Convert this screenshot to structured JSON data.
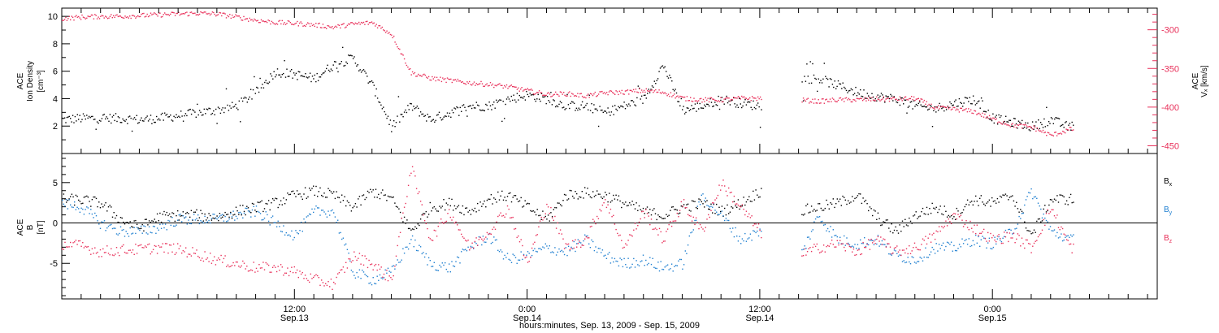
{
  "chart_data": [
    {
      "type": "scatter",
      "panel": "top",
      "ylabel_left": [
        "ACE",
        "Ion Density",
        "[cm⁻³]"
      ],
      "ylabel_right": [
        "ACE",
        "Vₓ [km/s]"
      ],
      "left_axis": {
        "ticks": [
          2,
          4,
          6,
          8,
          10
        ],
        "ylim": [
          0,
          10.6
        ]
      },
      "right_axis": {
        "ticks": [
          -450,
          -400,
          -350,
          -300
        ],
        "ylim": [
          -460,
          -272
        ],
        "color": "#e8305a"
      },
      "x_hours": [
        0,
        56.5
      ],
      "series": [
        {
          "name": "Ion Density",
          "axis": "left",
          "color": "#000000",
          "x": [
            0,
            1,
            2,
            3,
            4,
            5,
            6,
            7,
            8,
            9,
            10,
            11,
            12,
            13,
            14,
            15,
            16,
            17,
            18,
            19,
            20,
            21,
            22,
            23,
            24,
            25,
            26,
            27,
            28,
            29,
            30,
            31,
            32,
            33,
            34,
            35,
            36,
            37,
            38,
            39,
            40,
            41,
            42,
            43,
            44,
            45,
            46,
            47,
            48,
            49,
            50,
            51,
            52
          ],
          "y": [
            2.5,
            2.6,
            2.6,
            2.6,
            2.5,
            2.6,
            2.8,
            3.0,
            3.2,
            3.5,
            4.5,
            6.0,
            5.8,
            5.5,
            6.5,
            7.0,
            5.0,
            2.0,
            3.5,
            2.5,
            3.0,
            3.5,
            3.5,
            4.0,
            4.3,
            4.0,
            3.5,
            3.5,
            3.0,
            3.5,
            4.0,
            6.5,
            3.2,
            3.5,
            4.0,
            3.7,
            3.5,
            4.5,
            5.5,
            5.5,
            5.0,
            4.5,
            4.2,
            4.0,
            3.5,
            3.3,
            3.7,
            4.0,
            2.6,
            2.3,
            2.0,
            2.5,
            1.9
          ]
        },
        {
          "name": "Vx",
          "axis": "right",
          "color": "#e8305a",
          "x": [
            0,
            1,
            2,
            3,
            4,
            5,
            6,
            7,
            8,
            9,
            10,
            11,
            12,
            13,
            14,
            15,
            16,
            17,
            18,
            19,
            20,
            21,
            22,
            23,
            24,
            25,
            26,
            27,
            28,
            29,
            30,
            31,
            32,
            33,
            34,
            35,
            36,
            37,
            38,
            39,
            40,
            41,
            42,
            43,
            44,
            45,
            46,
            47,
            48,
            49,
            50,
            51,
            52
          ],
          "y": [
            -285,
            -283,
            -282,
            -282,
            -281,
            -280,
            -279,
            -278,
            -279,
            -283,
            -287,
            -290,
            -291,
            -293,
            -296,
            -292,
            -290,
            -305,
            -355,
            -362,
            -365,
            -368,
            -370,
            -373,
            -378,
            -383,
            -382,
            -385,
            -381,
            -380,
            -378,
            -380,
            -388,
            -390,
            -390,
            -388,
            -388,
            -389,
            -390,
            -392,
            -390,
            -390,
            -389,
            -389,
            -388,
            -400,
            -402,
            -405,
            -415,
            -423,
            -425,
            -436,
            -428
          ]
        }
      ]
    },
    {
      "type": "scatter",
      "panel": "bottom",
      "ylabel_left": [
        "ACE",
        "B",
        "[nT]"
      ],
      "left_axis": {
        "ticks": [
          -5,
          0,
          5
        ],
        "ylim": [
          -9.4,
          8.6
        ]
      },
      "zero_line": true,
      "x_hours": [
        0,
        56.5
      ],
      "legend": [
        {
          "text": "Bx",
          "color": "#000000"
        },
        {
          "text": "By",
          "color": "#1f7fd0"
        },
        {
          "text": "Bz",
          "color": "#e8305a"
        }
      ],
      "series": [
        {
          "name": "Bx",
          "color": "#000000",
          "x": [
            0,
            1,
            2,
            3,
            4,
            5,
            6,
            7,
            8,
            9,
            10,
            11,
            12,
            13,
            14,
            15,
            16,
            17,
            18,
            19,
            20,
            21,
            22,
            23,
            24,
            25,
            26,
            27,
            28,
            29,
            30,
            31,
            32,
            33,
            34,
            35,
            36,
            37,
            38,
            39,
            40,
            41,
            42,
            43,
            44,
            45,
            46,
            47,
            48,
            49,
            50,
            51,
            52
          ],
          "y": [
            3.0,
            2.9,
            2.5,
            0.5,
            -0.5,
            0.8,
            1.0,
            1.0,
            0.8,
            1.5,
            2.0,
            2.5,
            3.5,
            4.0,
            3.5,
            2.0,
            4.0,
            3.0,
            -1.0,
            2.0,
            2.5,
            1.5,
            3.0,
            3.5,
            2.0,
            0.5,
            3.5,
            3.8,
            3.5,
            2.5,
            1.5,
            1.0,
            2.0,
            2.5,
            1.5,
            2.5,
            4.0,
            3.0,
            1.5,
            2.0,
            2.5,
            3.5,
            0.8,
            -1.0,
            1.0,
            2.0,
            1.0,
            3.0,
            2.5,
            3.5,
            -1.5,
            3.0,
            3.0
          ]
        },
        {
          "name": "By",
          "color": "#1f7fd0",
          "x": [
            0,
            1,
            2,
            3,
            4,
            5,
            6,
            7,
            8,
            9,
            10,
            11,
            12,
            13,
            14,
            15,
            16,
            17,
            18,
            19,
            20,
            21,
            22,
            23,
            24,
            25,
            26,
            27,
            28,
            29,
            30,
            31,
            32,
            33,
            34,
            35,
            36,
            37,
            38,
            39,
            40,
            41,
            42,
            43,
            44,
            45,
            46,
            47,
            48,
            49,
            50,
            51,
            52
          ],
          "y": [
            2.5,
            2.0,
            0.0,
            -1.0,
            -1.0,
            -0.5,
            0.5,
            0.5,
            0.5,
            1.0,
            1.5,
            0.0,
            -1.5,
            1.5,
            1.5,
            -6.0,
            -7.0,
            -6.0,
            -2.0,
            -5.0,
            -5.5,
            -3.0,
            -1.5,
            -4.5,
            -4.0,
            -3.0,
            -3.5,
            -2.0,
            -4.0,
            -5.0,
            -4.5,
            -5.5,
            -5.0,
            3.5,
            1.0,
            -2.0,
            -1.0,
            -5.0,
            -4.5,
            1.0,
            -2.0,
            -2.5,
            -2.0,
            -4.0,
            -4.5,
            -3.0,
            -3.0,
            -2.0,
            -2.5,
            -1.0,
            4.0,
            -1.0,
            -2.0
          ]
        },
        {
          "name": "Bz",
          "color": "#e8305a",
          "x": [
            0,
            1,
            2,
            3,
            4,
            5,
            6,
            7,
            8,
            9,
            10,
            11,
            12,
            13,
            14,
            15,
            16,
            17,
            18,
            19,
            20,
            21,
            22,
            23,
            24,
            25,
            26,
            27,
            28,
            29,
            30,
            31,
            32,
            33,
            34,
            35,
            36,
            37,
            38,
            39,
            40,
            41,
            42,
            43,
            44,
            45,
            46,
            47,
            48,
            49,
            50,
            51,
            52
          ],
          "y": [
            -2.5,
            -2.8,
            -3.5,
            -3.3,
            -3.2,
            -3.0,
            -3.2,
            -3.8,
            -4.5,
            -5.0,
            -5.5,
            -5.5,
            -6.0,
            -7.0,
            -7.5,
            -4.0,
            -5.0,
            -7.0,
            7.0,
            -2.0,
            1.5,
            -3.0,
            -1.0,
            2.0,
            -5.0,
            2.5,
            -3.0,
            -2.0,
            3.0,
            -3.0,
            1.5,
            -2.0,
            2.5,
            -1.0,
            5.0,
            2.0,
            -1.0,
            -3.5,
            -4.0,
            -3.0,
            -2.5,
            -3.5,
            -2.0,
            -3.5,
            -3.0,
            -1.5,
            1.0,
            -0.5,
            -2.0,
            -1.5,
            -3.0,
            2.0,
            -3.0
          ]
        }
      ]
    }
  ],
  "x_ticks": [
    {
      "hour": 12,
      "time": "12:00",
      "date": "Sep.13"
    },
    {
      "hour": 24,
      "time": "0:00",
      "date": "Sep.14"
    },
    {
      "hour": 36,
      "time": "12:00",
      "date": "Sep.14"
    },
    {
      "hour": 48,
      "time": "0:00",
      "date": "Sep.15"
    }
  ],
  "xlabel": "hours:minutes, Sep. 13, 2009 - Sep. 15, 2009",
  "data_gap_hours": [
    36.1,
    38.1
  ]
}
